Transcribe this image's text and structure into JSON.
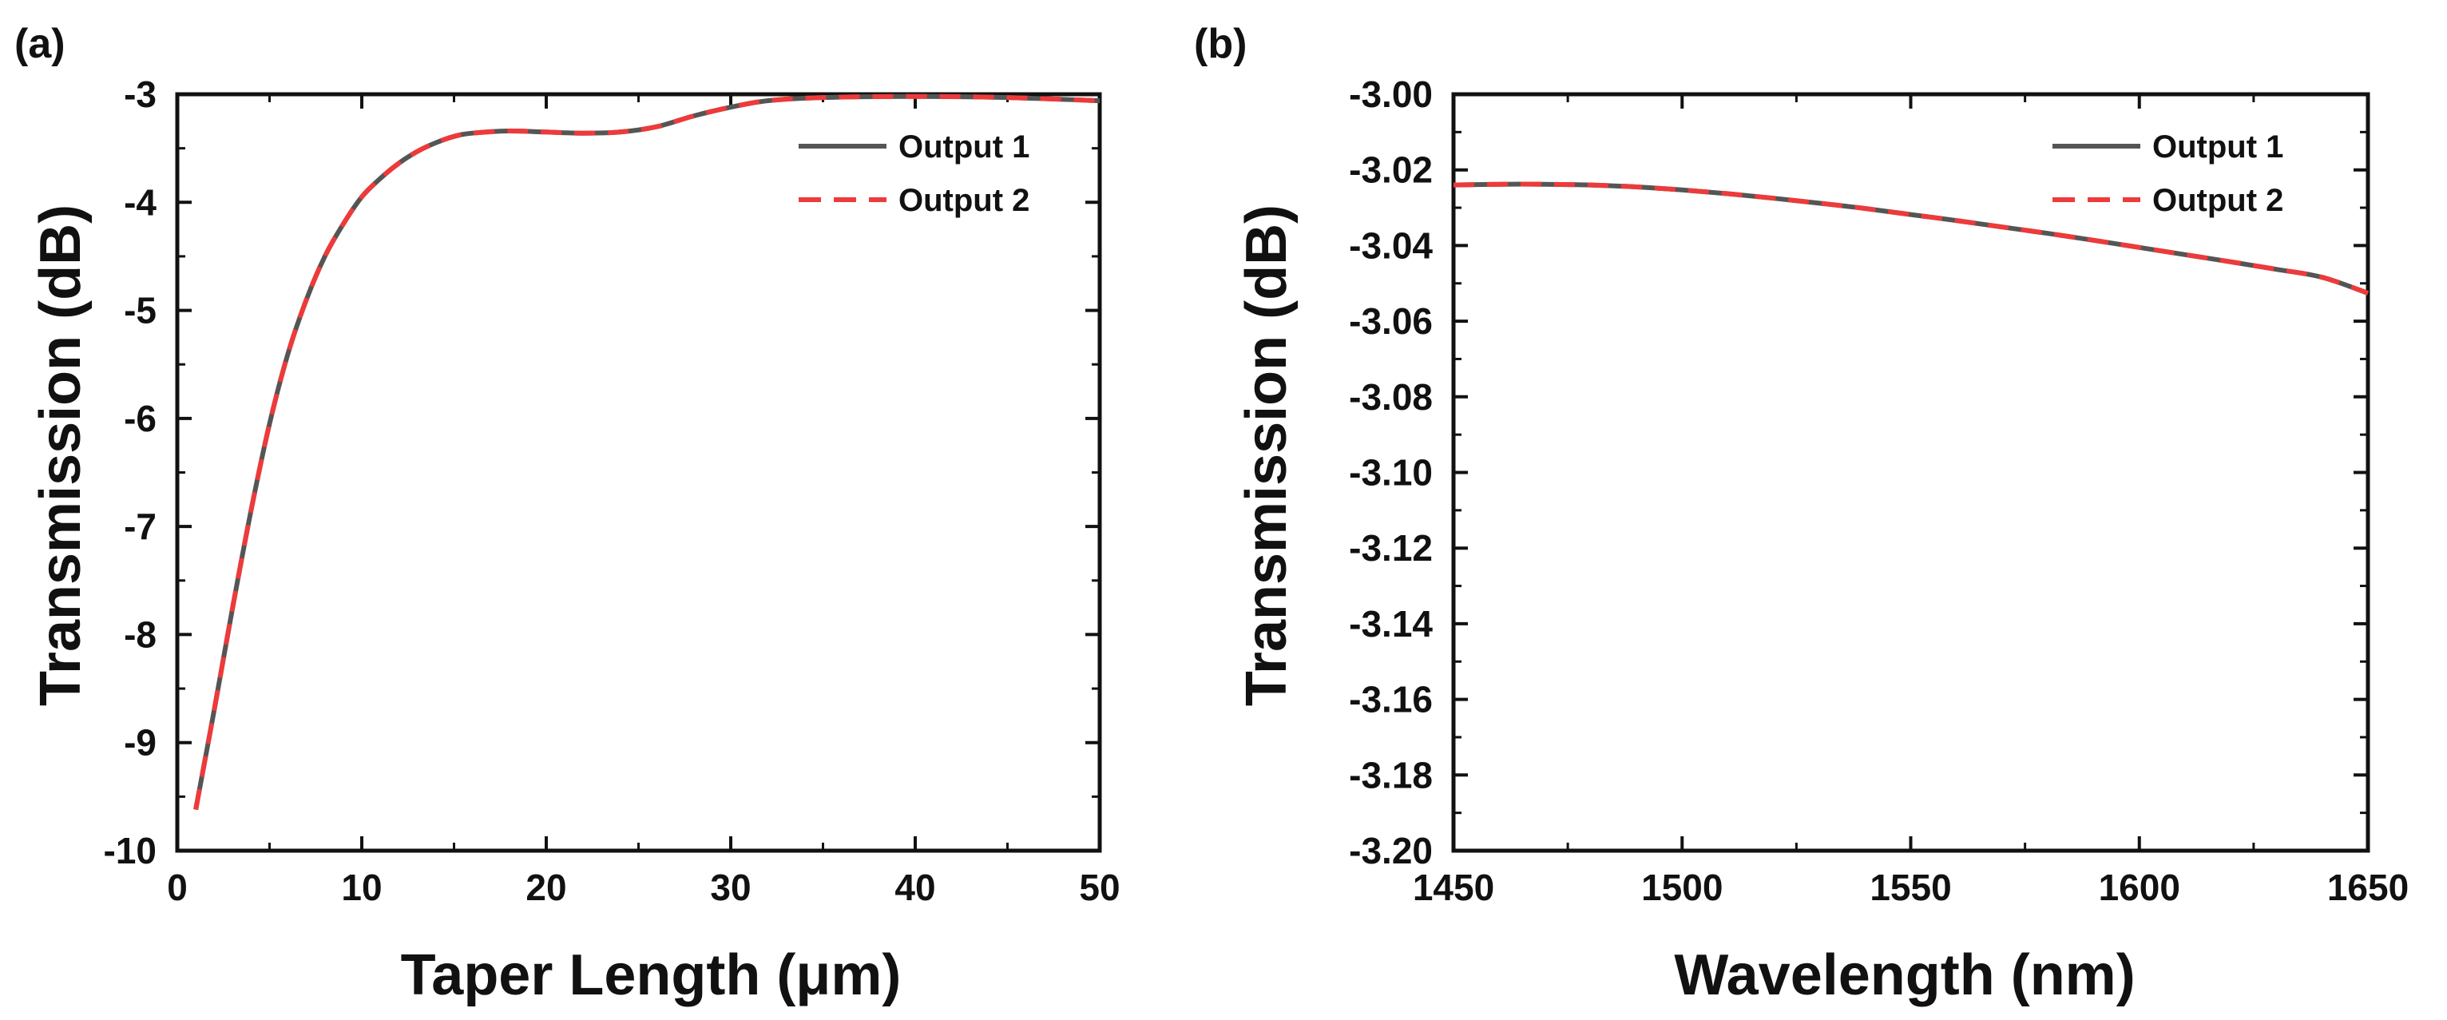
{
  "chart_data": [
    {
      "panel_label": "(a)",
      "type": "line",
      "xlabel": "Taper Length (μm)",
      "ylabel": "Transmission (dB)",
      "xlim": [
        0,
        50
      ],
      "ylim": [
        -10,
        -3
      ],
      "xticks": [
        0,
        10,
        20,
        30,
        40,
        50
      ],
      "yticks": [
        -10,
        -9,
        -8,
        -7,
        -6,
        -5,
        -4,
        -3
      ],
      "xtick_labels": [
        "0",
        "10",
        "20",
        "30",
        "40",
        "50"
      ],
      "ytick_labels": [
        "-10",
        "-9",
        "-8",
        "-7",
        "-6",
        "-5",
        "-4",
        "-3"
      ],
      "legend_position": "top-right",
      "series": [
        {
          "name": "Output 1",
          "color": "#555555",
          "style": "solid",
          "x": [
            1,
            2,
            3,
            4,
            5,
            6,
            7,
            8,
            9,
            10,
            11,
            12,
            13,
            14,
            15,
            16,
            18,
            20,
            22,
            24,
            26,
            28,
            30,
            32,
            35,
            40,
            45,
            50
          ],
          "y": [
            -9.62,
            -8.7,
            -7.75,
            -6.85,
            -6.05,
            -5.4,
            -4.9,
            -4.5,
            -4.2,
            -3.95,
            -3.78,
            -3.64,
            -3.53,
            -3.45,
            -3.39,
            -3.36,
            -3.34,
            -3.35,
            -3.36,
            -3.35,
            -3.3,
            -3.2,
            -3.12,
            -3.06,
            -3.03,
            -3.02,
            -3.03,
            -3.06
          ]
        },
        {
          "name": "Output 2",
          "color": "#ee3a3a",
          "style": "dashed",
          "x": [
            1,
            2,
            3,
            4,
            5,
            6,
            7,
            8,
            9,
            10,
            11,
            12,
            13,
            14,
            15,
            16,
            18,
            20,
            22,
            24,
            26,
            28,
            30,
            32,
            35,
            40,
            45,
            50
          ],
          "y": [
            -9.62,
            -8.7,
            -7.75,
            -6.85,
            -6.05,
            -5.4,
            -4.9,
            -4.5,
            -4.2,
            -3.95,
            -3.78,
            -3.64,
            -3.53,
            -3.45,
            -3.39,
            -3.36,
            -3.34,
            -3.35,
            -3.36,
            -3.35,
            -3.3,
            -3.2,
            -3.12,
            -3.06,
            -3.03,
            -3.02,
            -3.03,
            -3.06
          ]
        }
      ]
    },
    {
      "panel_label": "(b)",
      "type": "line",
      "xlabel": "Wavelength (nm)",
      "ylabel": "Transmission (dB)",
      "xlim": [
        1450,
        1650
      ],
      "ylim": [
        -3.2,
        -3.0
      ],
      "xticks": [
        1450,
        1500,
        1550,
        1600,
        1650
      ],
      "yticks": [
        -3.2,
        -3.18,
        -3.16,
        -3.14,
        -3.12,
        -3.1,
        -3.08,
        -3.06,
        -3.04,
        -3.02,
        -3.0
      ],
      "xtick_labels": [
        "1450",
        "1500",
        "1550",
        "1600",
        "1650"
      ],
      "ytick_labels": [
        "-3.20",
        "-3.18",
        "-3.16",
        "-3.14",
        "-3.12",
        "-3.10",
        "-3.08",
        "-3.06",
        "-3.04",
        "-3.02",
        "-3.00"
      ],
      "legend_position": "top-right",
      "series": [
        {
          "name": "Output 1",
          "color": "#555555",
          "style": "solid",
          "x": [
            1450,
            1460,
            1470,
            1480,
            1490,
            1500,
            1510,
            1520,
            1530,
            1540,
            1550,
            1560,
            1570,
            1580,
            1590,
            1600,
            1610,
            1620,
            1630,
            1640,
            1650
          ],
          "y": [
            -3.024,
            -3.0238,
            -3.0238,
            -3.024,
            -3.0245,
            -3.0253,
            -3.0263,
            -3.0275,
            -3.0288,
            -3.0302,
            -3.0318,
            -3.0334,
            -3.0351,
            -3.0368,
            -3.0386,
            -3.0405,
            -3.0424,
            -3.0443,
            -3.0463,
            -3.0484,
            -3.0526
          ]
        },
        {
          "name": "Output 2",
          "color": "#ee3a3a",
          "style": "dashed",
          "x": [
            1450,
            1460,
            1470,
            1480,
            1490,
            1500,
            1510,
            1520,
            1530,
            1540,
            1550,
            1560,
            1570,
            1580,
            1590,
            1600,
            1610,
            1620,
            1630,
            1640,
            1650
          ],
          "y": [
            -3.024,
            -3.0238,
            -3.0238,
            -3.024,
            -3.0245,
            -3.0253,
            -3.0263,
            -3.0275,
            -3.0288,
            -3.0302,
            -3.0318,
            -3.0334,
            -3.0351,
            -3.0368,
            -3.0386,
            -3.0405,
            -3.0424,
            -3.0443,
            -3.0463,
            -3.0484,
            -3.0526
          ]
        }
      ]
    }
  ]
}
